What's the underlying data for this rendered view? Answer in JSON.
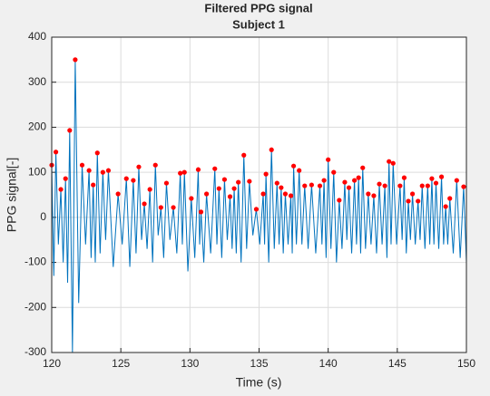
{
  "chart_data": {
    "type": "line",
    "title": "Filtered PPG signal",
    "subtitle": "Subject 1",
    "x_label": "Time (s)",
    "y_label": "PPG signal[-]",
    "xlim": [
      120,
      150
    ],
    "ylim": [
      -300,
      400
    ],
    "xticks": [
      120,
      125,
      130,
      135,
      140,
      145,
      150
    ],
    "yticks": [
      -300,
      -200,
      -100,
      0,
      100,
      200,
      300,
      400
    ],
    "grid": true,
    "series": [
      {
        "color": "#0072bd",
        "mode": "line",
        "x": [
          120.0,
          120.15,
          120.3,
          120.48,
          120.66,
          120.83,
          121.0,
          121.15,
          121.3,
          121.5,
          121.7,
          121.95,
          122.2,
          122.45,
          122.7,
          122.85,
          123.0,
          123.15,
          123.3,
          123.5,
          123.7,
          123.9,
          124.1,
          124.45,
          124.8,
          125.1,
          125.4,
          125.65,
          125.9,
          126.1,
          126.3,
          126.5,
          126.7,
          126.9,
          127.1,
          127.3,
          127.5,
          127.7,
          127.9,
          128.1,
          128.3,
          128.55,
          128.8,
          129.05,
          129.3,
          129.45,
          129.6,
          129.85,
          130.1,
          130.35,
          130.6,
          130.7,
          130.8,
          131.0,
          131.2,
          131.5,
          131.8,
          131.95,
          132.1,
          132.3,
          132.5,
          132.7,
          132.9,
          133.05,
          133.2,
          133.35,
          133.5,
          133.7,
          133.9,
          134.1,
          134.3,
          134.55,
          134.8,
          135.05,
          135.3,
          135.4,
          135.5,
          135.7,
          135.9,
          136.1,
          136.3,
          136.45,
          136.6,
          136.75,
          136.9,
          137.1,
          137.3,
          137.4,
          137.5,
          137.7,
          137.9,
          138.1,
          138.3,
          138.55,
          138.8,
          139.1,
          139.4,
          139.55,
          139.7,
          139.85,
          140.0,
          140.2,
          140.4,
          140.6,
          140.8,
          141.0,
          141.2,
          141.35,
          141.5,
          141.7,
          141.9,
          142.05,
          142.2,
          142.35,
          142.5,
          142.7,
          142.9,
          143.1,
          143.3,
          143.5,
          143.7,
          143.9,
          144.1,
          144.25,
          144.4,
          144.55,
          144.7,
          144.95,
          145.2,
          145.35,
          145.5,
          145.65,
          145.8,
          145.95,
          146.1,
          146.3,
          146.5,
          146.65,
          146.8,
          147.0,
          147.2,
          147.35,
          147.5,
          147.65,
          147.8,
          148.0,
          148.2,
          148.35,
          148.5,
          148.65,
          148.8,
          149.05,
          149.3,
          149.55,
          149.8,
          150.0
        ],
        "values": [
          116,
          -130,
          145,
          -60,
          62,
          -100,
          86,
          -145,
          193,
          -300,
          350,
          -190,
          116,
          -60,
          104,
          -90,
          72,
          -100,
          143,
          -80,
          100,
          -50,
          104,
          -110,
          52,
          -60,
          86,
          -110,
          82,
          -80,
          112,
          -50,
          30,
          -70,
          62,
          -100,
          116,
          -40,
          22,
          -90,
          76,
          -50,
          22,
          -80,
          98,
          -60,
          100,
          -120,
          42,
          -90,
          106,
          -60,
          12,
          -100,
          52,
          -80,
          108,
          -60,
          64,
          -90,
          84,
          -50,
          46,
          -70,
          64,
          -80,
          78,
          -100,
          138,
          -70,
          80,
          -40,
          18,
          -60,
          52,
          -60,
          96,
          -100,
          150,
          -70,
          76,
          -60,
          66,
          -80,
          52,
          -60,
          48,
          -80,
          114,
          -60,
          104,
          -60,
          70,
          -70,
          72,
          -80,
          70,
          -60,
          82,
          -90,
          128,
          -70,
          100,
          -100,
          38,
          -70,
          78,
          -50,
          66,
          -80,
          82,
          -60,
          88,
          -80,
          110,
          -70,
          52,
          -60,
          48,
          -80,
          74,
          -60,
          70,
          -90,
          124,
          -60,
          120,
          -60,
          70,
          -50,
          88,
          -80,
          36,
          -50,
          52,
          -60,
          36,
          -50,
          70,
          -70,
          70,
          -60,
          86,
          -60,
          76,
          -70,
          90,
          -60,
          24,
          -60,
          42,
          -80,
          82,
          -90,
          68,
          -100
        ]
      },
      {
        "color": "#ff0000",
        "mode": "markers",
        "x": [
          120.0,
          120.3,
          120.66,
          121.0,
          121.3,
          121.7,
          122.2,
          122.7,
          123.0,
          123.3,
          123.7,
          124.1,
          124.8,
          125.4,
          125.9,
          126.3,
          126.7,
          127.1,
          127.5,
          127.9,
          128.3,
          128.8,
          129.3,
          129.6,
          130.1,
          130.6,
          130.8,
          131.2,
          131.8,
          132.1,
          132.5,
          132.9,
          133.2,
          133.5,
          133.9,
          134.3,
          134.8,
          135.3,
          135.5,
          135.9,
          136.3,
          136.6,
          136.9,
          137.3,
          137.5,
          137.9,
          138.3,
          138.8,
          139.4,
          139.7,
          140.0,
          140.4,
          140.8,
          141.2,
          141.5,
          141.9,
          142.2,
          142.5,
          142.9,
          143.3,
          143.7,
          144.1,
          144.4,
          144.7,
          145.2,
          145.5,
          145.8,
          146.1,
          146.5,
          146.8,
          147.2,
          147.5,
          147.8,
          148.2,
          148.5,
          148.8,
          149.3,
          149.8
        ],
        "values": [
          116,
          145,
          62,
          86,
          193,
          350,
          116,
          104,
          72,
          143,
          100,
          104,
          52,
          86,
          82,
          112,
          30,
          62,
          116,
          22,
          76,
          22,
          98,
          100,
          42,
          106,
          12,
          52,
          108,
          64,
          84,
          46,
          64,
          78,
          138,
          80,
          18,
          52,
          96,
          150,
          76,
          66,
          52,
          48,
          114,
          104,
          70,
          72,
          70,
          82,
          128,
          100,
          38,
          78,
          66,
          82,
          88,
          110,
          52,
          48,
          74,
          70,
          124,
          120,
          70,
          88,
          36,
          52,
          36,
          70,
          70,
          86,
          76,
          90,
          24,
          42,
          82,
          68
        ]
      }
    ]
  }
}
